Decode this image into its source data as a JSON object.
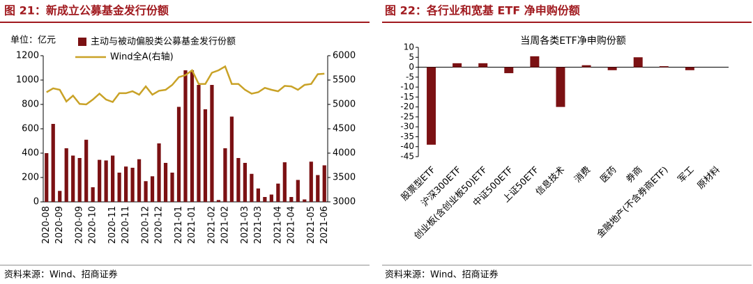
{
  "chart_data": [
    {
      "type": "bar",
      "title": "图 21：新成立公募基金发行份额",
      "unit": "单位：亿元",
      "source": "资料来源：Wind、招商证券",
      "categories": [
        "2020-08",
        null,
        "2020-09",
        null,
        null,
        "2020-09",
        null,
        "2020-10",
        null,
        null,
        "2020-11",
        null,
        "2020-11",
        null,
        null,
        "2020-12",
        null,
        "2020-12",
        null,
        null,
        "2021-01",
        null,
        "2021-01",
        null,
        null,
        "2021-02",
        null,
        "2021-02",
        null,
        null,
        "2021-03",
        null,
        "2021-03",
        null,
        null,
        "2021-04",
        null,
        "2021-04",
        null,
        null,
        "2021-05",
        null,
        "2021-06"
      ],
      "series": [
        {
          "name": "主动与被动偏股类公募基金发行份额",
          "type": "bar",
          "color": "#7b1113",
          "values": [
            400,
            640,
            90,
            440,
            380,
            360,
            510,
            120,
            345,
            340,
            380,
            240,
            290,
            280,
            350,
            170,
            210,
            480,
            320,
            240,
            780,
            1080,
            1080,
            960,
            760,
            960,
            15,
            440,
            700,
            360,
            320,
            230,
            110,
            40,
            60,
            150,
            325,
            40,
            180,
            20,
            330,
            220,
            300
          ]
        },
        {
          "name": "Wind全A(右轴)",
          "type": "line",
          "axis": "y2",
          "color": "#c9a227",
          "values": [
            5250,
            5330,
            5300,
            5060,
            5180,
            5010,
            5000,
            5100,
            5220,
            5100,
            5050,
            5230,
            5230,
            5270,
            5200,
            5370,
            5200,
            5280,
            5300,
            5400,
            5560,
            5600,
            5700,
            5420,
            5420,
            5650,
            5700,
            5780,
            5420,
            5420,
            5300,
            5220,
            5250,
            5340,
            5300,
            5270,
            5380,
            5370,
            5300,
            5400,
            5420,
            5620,
            5630
          ]
        }
      ],
      "ylim": [
        0,
        1200
      ],
      "yticks": [
        0,
        200,
        400,
        600,
        800,
        1000,
        1200
      ],
      "y2lim": [
        3000,
        6000
      ],
      "y2ticks": [
        3000,
        3500,
        4000,
        4500,
        5000,
        5500,
        6000
      ]
    },
    {
      "type": "bar",
      "title": "图 22：各行业和宽基 ETF 净申购份额",
      "chart_title": "当周各类ETF净申购份额",
      "source": "资料来源：Wind、招商证券",
      "categories": [
        "股票型ETF",
        "沪深300ETF",
        "创业板(含创业板50)ETF",
        "中证500ETF",
        "上证50ETF",
        "信息技术",
        "消费",
        "医药",
        "券商",
        "金融地产(不含券商ETF)",
        "军工",
        "原材料"
      ],
      "values": [
        -39,
        2,
        2,
        -3,
        5.5,
        -20,
        1,
        -1.5,
        5,
        0.5,
        -1.5,
        0
      ],
      "color": "#7b1113",
      "ylim": [
        -45,
        10
      ],
      "yticks": [
        -45,
        -40,
        -35,
        -30,
        -25,
        -20,
        -15,
        -10,
        -5,
        0,
        5,
        10
      ]
    }
  ]
}
